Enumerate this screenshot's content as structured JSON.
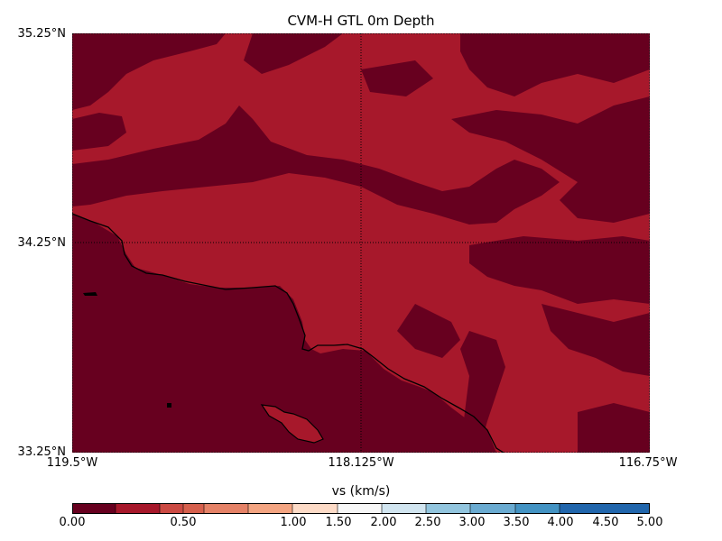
{
  "map": {
    "title": "CVM-H GTL 0m Depth",
    "lat_labels": [
      "35.25°N",
      "34.25°N",
      "33.25°N"
    ],
    "lon_labels": [
      "119.5°W",
      "118.125°W",
      "116.75°W"
    ],
    "extent": {
      "lat_min": 33.25,
      "lat_max": 35.25,
      "lon_min": -119.5,
      "lon_max": -116.75
    },
    "gridlines": "dotted",
    "colors": {
      "very_low": "#67001f",
      "low": "#a7182b",
      "coast": "#000000"
    }
  },
  "colorbar": {
    "label": "vs (km/s)",
    "ticks": [
      "0.00",
      "0.50",
      "1.00",
      "1.50",
      "2.00",
      "2.50",
      "3.00",
      "3.50",
      "4.00",
      "4.50",
      "5.00"
    ],
    "boundaries": [
      0,
      0.25,
      0.5,
      0.625,
      0.75,
      1.0,
      1.5,
      2.0,
      2.5,
      3.0,
      3.5,
      4.0,
      4.5,
      5.0
    ],
    "colors": [
      "#67001f",
      "#a7182b",
      "#cb4a43",
      "#d6604d",
      "#e58267",
      "#f4a582",
      "#fddbc7",
      "#f7f7f7",
      "#d1e5f0",
      "#92c5de",
      "#6aabd1",
      "#4393c3",
      "#2166ac",
      "#053061"
    ]
  }
}
